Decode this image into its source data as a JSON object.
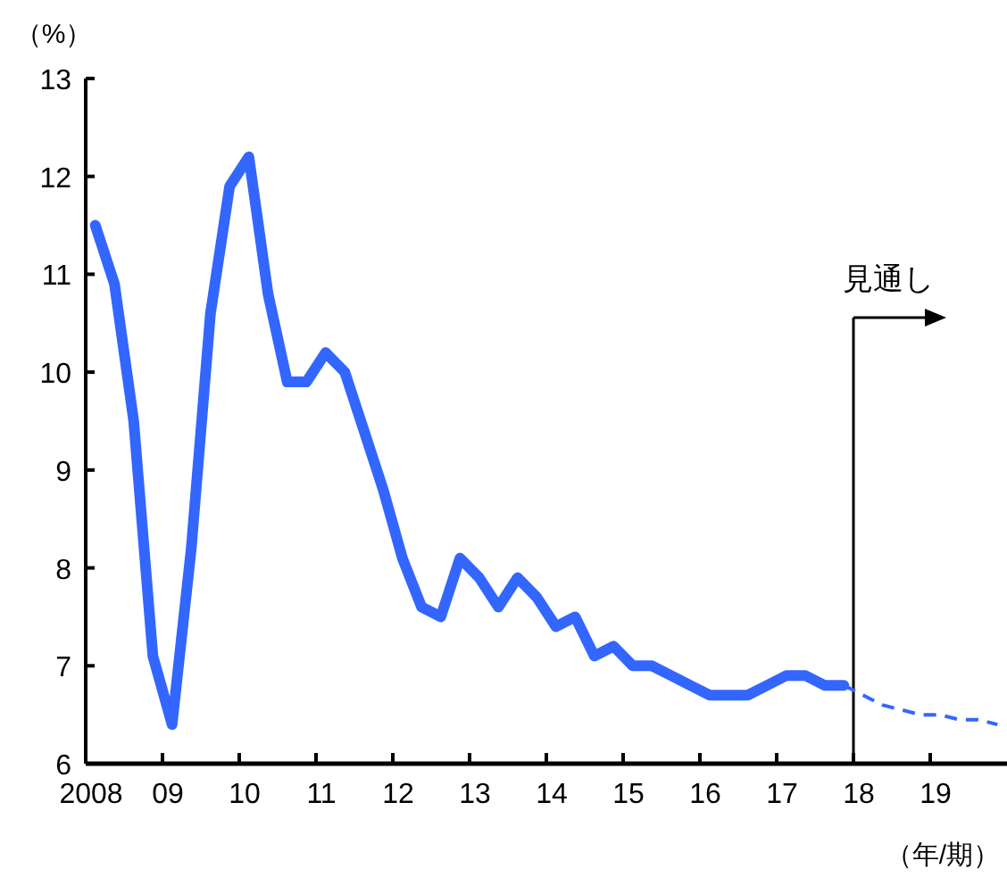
{
  "chart_data": {
    "type": "line",
    "ylabel": "（%）",
    "xlabel": "（年/期）",
    "xlim": [
      2008,
      2020
    ],
    "ylim": [
      6,
      13
    ],
    "xticks": [
      {
        "value": 2008,
        "label": "2008"
      },
      {
        "value": 2009,
        "label": "09"
      },
      {
        "value": 2010,
        "label": "10"
      },
      {
        "value": 2011,
        "label": "11"
      },
      {
        "value": 2012,
        "label": "12"
      },
      {
        "value": 2013,
        "label": "13"
      },
      {
        "value": 2014,
        "label": "14"
      },
      {
        "value": 2015,
        "label": "15"
      },
      {
        "value": 2016,
        "label": "16"
      },
      {
        "value": 2017,
        "label": "17"
      },
      {
        "value": 2018,
        "label": "18"
      },
      {
        "value": 2019,
        "label": "19"
      }
    ],
    "yticks": [
      6,
      7,
      8,
      9,
      10,
      11,
      12,
      13
    ],
    "grid": false,
    "series": [
      {
        "color": "#3366ff",
        "line_style": "solid",
        "x": [
          2008.125,
          2008.375,
          2008.625,
          2008.875,
          2009.125,
          2009.375,
          2009.625,
          2009.875,
          2010.125,
          2010.375,
          2010.625,
          2010.875,
          2011.125,
          2011.375,
          2011.625,
          2011.875,
          2012.125,
          2012.375,
          2012.625,
          2012.875,
          2013.125,
          2013.375,
          2013.625,
          2013.875,
          2014.125,
          2014.375,
          2014.625,
          2014.875,
          2015.125,
          2015.375,
          2015.625,
          2015.875,
          2016.125,
          2016.375,
          2016.625,
          2016.875,
          2017.125,
          2017.375,
          2017.625,
          2017.875
        ],
        "values": [
          11.5,
          10.9,
          9.5,
          7.1,
          6.4,
          8.2,
          10.6,
          11.9,
          12.2,
          10.8,
          9.9,
          9.9,
          10.2,
          10.0,
          9.4,
          8.8,
          8.1,
          7.6,
          7.5,
          8.1,
          7.9,
          7.6,
          7.9,
          7.7,
          7.4,
          7.5,
          7.1,
          7.2,
          7.0,
          7.0,
          6.9,
          6.8,
          6.7,
          6.7,
          6.7,
          6.8,
          6.9,
          6.9,
          6.8,
          6.8
        ]
      },
      {
        "color": "#3366ff",
        "line_style": "dashed",
        "x": [
          2017.875,
          2018.125,
          2018.375,
          2018.625,
          2018.875,
          2019.125,
          2019.375,
          2019.625,
          2019.875
        ],
        "values": [
          6.8,
          6.7,
          6.6,
          6.55,
          6.5,
          6.5,
          6.45,
          6.45,
          6.4
        ]
      }
    ],
    "ref_lines": [
      {
        "axis": "x",
        "value": 2018,
        "label": "見通し"
      }
    ]
  }
}
